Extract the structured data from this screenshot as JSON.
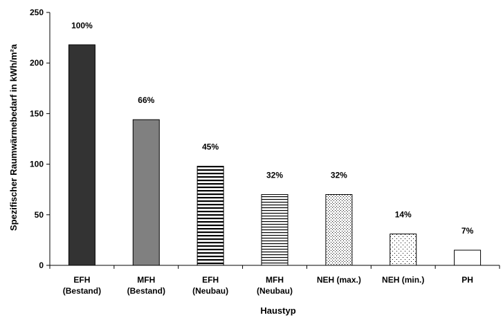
{
  "chart_data": {
    "type": "bar",
    "title": "",
    "xlabel": "Haustyp",
    "ylabel": "Spezifischer Raumwärmebedarf in kWh/m²a",
    "ylim": [
      0,
      250
    ],
    "yticks": [
      0,
      50,
      100,
      150,
      200,
      250
    ],
    "grid": false,
    "legend": "none",
    "categories": [
      [
        "EFH",
        "(Bestand)"
      ],
      [
        "MFH",
        "(Bestand)"
      ],
      [
        "EFH",
        "(Neubau)"
      ],
      [
        "MFH",
        "(Neubau)"
      ],
      [
        "NEH (max.)"
      ],
      [
        "NEH (min.)"
      ],
      [
        "PH"
      ]
    ],
    "values": [
      218,
      144,
      98,
      70,
      70,
      31,
      15
    ],
    "data_labels": [
      "100%",
      "66%",
      "45%",
      "32%",
      "32%",
      "14%",
      "7%"
    ],
    "bar_fills": [
      "solid-dark",
      "solid-gray",
      "horizontal-stripes-wide",
      "horizontal-stripes-fine",
      "dots-dense",
      "dots-sparse",
      "none"
    ],
    "colors": {
      "dark": "#333333",
      "gray": "#808080",
      "outline": "#000000"
    }
  }
}
